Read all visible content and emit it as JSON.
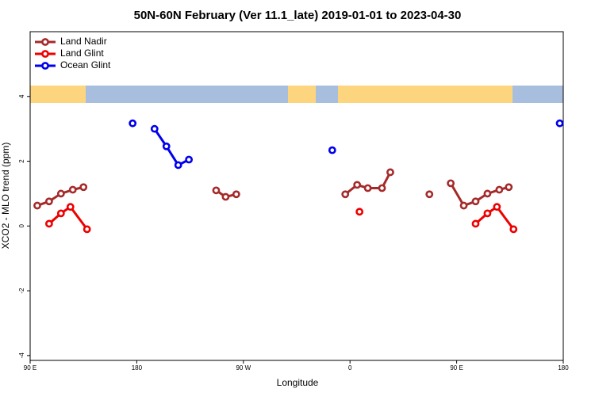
{
  "chart_data": {
    "type": "line",
    "title": "50N-60N February (Ver 11.1_late)   2019-01-01 to 2023-04-30",
    "x_label": "Longitude",
    "y_label": "XCO2 - MLO trend (ppm)",
    "xlim": [
      90,
      540
    ],
    "ylim": [
      -4.15,
      6
    ],
    "xticks": [
      {
        "value": 90,
        "label": "90 E"
      },
      180,
      {
        "value": 270,
        "label": "90 W"
      },
      {
        "value": 360,
        "label": "0"
      },
      {
        "value": 450,
        "label": "90 E"
      },
      {
        "value": 540,
        "label": "180"
      }
    ],
    "yticks": [
      -4,
      -2,
      0,
      2,
      4
    ],
    "grid": false,
    "legend": "top-left",
    "series": [
      {
        "name": "Land Nadir",
        "color": "#a52a2a",
        "x": [
          96,
          106,
          116,
          126,
          135,
          null,
          247,
          255,
          264,
          null,
          356,
          366,
          375,
          387,
          394,
          null,
          427,
          null,
          445,
          456,
          466,
          476,
          486,
          494
        ],
        "values": [
          0.63,
          0.76,
          1.0,
          1.12,
          1.2,
          null,
          1.1,
          0.9,
          0.98,
          null,
          0.98,
          1.27,
          1.17,
          1.17,
          1.66,
          null,
          0.98,
          null,
          1.32,
          0.63,
          0.76,
          1.0,
          1.12,
          1.2
        ]
      },
      {
        "name": "Land Glint",
        "color": "#ee0000",
        "x": [
          106,
          116,
          124,
          138,
          null,
          368,
          null,
          466,
          476,
          484,
          498
        ],
        "values": [
          0.07,
          0.39,
          0.59,
          -0.1,
          null,
          0.44,
          null,
          0.07,
          0.39,
          0.59,
          -0.1
        ]
      },
      {
        "name": "Ocean Glint",
        "color": "#0000ee",
        "x": [
          176.5,
          null,
          195,
          205,
          215,
          224,
          null,
          345,
          null,
          537
        ],
        "values": [
          3.17,
          null,
          3.0,
          2.46,
          1.88,
          2.05,
          null,
          2.34,
          null,
          3.17
        ]
      }
    ]
  }
}
